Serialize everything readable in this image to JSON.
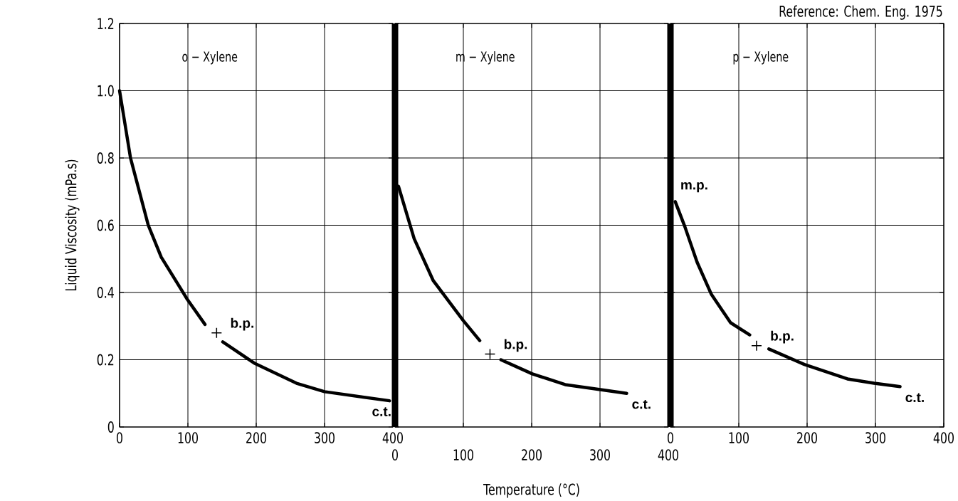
{
  "chart_data": [
    {
      "type": "line",
      "title": "o − Xylene",
      "ylabel": "Liquid Viscosity (mPa.s)",
      "xlim": [
        0,
        400
      ],
      "xticks": [
        0,
        100,
        200,
        300,
        400
      ],
      "ylim": [
        0,
        1.2
      ],
      "yticks": [
        0,
        0.2,
        0.4,
        0.6,
        0.8,
        {
          "value": 1,
          "label": "1.0"
        },
        1.2
      ],
      "grid": true,
      "series": [
        {
          "color": "#000000",
          "x": [
            0,
            16,
            42,
            61,
            99,
            125,
            142,
            151,
            197,
            259,
            300,
            395
          ],
          "values": [
            1.0,
            0.8,
            0.6,
            0.505,
            0.38,
            0.305,
            null,
            0.253,
            0.19,
            0.13,
            0.105,
            0.078
          ]
        },
        {
          "type": "scatter",
          "marker": "cross",
          "color": "#000000",
          "x": [
            142
          ],
          "values": [
            0.28
          ]
        }
      ],
      "annotations": [
        {
          "text": "b.p.",
          "x": 142,
          "y": 0.28
        },
        {
          "text": "c.t.",
          "x": 395,
          "y": 0.078
        }
      ]
    },
    {
      "type": "line",
      "title": "m − Xylene",
      "xlabel": "Temperature (°C)",
      "xlim": [
        0,
        400
      ],
      "xticks": [
        0,
        100,
        200,
        300,
        400
      ],
      "ylim": [
        0,
        1.2
      ],
      "yticks": [
        0,
        0.2,
        0.4,
        0.6,
        0.8,
        1,
        1.2
      ],
      "grid": true,
      "tick_labels": "x",
      "series": [
        {
          "color": "#000000",
          "x": [
            5,
            28,
            56,
            100,
            124,
            139,
            155,
            201,
            249,
            297,
            339
          ],
          "values": [
            0.716,
            0.56,
            0.435,
            0.316,
            0.257,
            null,
            0.2,
            0.158,
            0.126,
            0.112,
            0.1
          ]
        },
        {
          "type": "scatter",
          "marker": "cross",
          "color": "#000000",
          "x": [
            139
          ],
          "values": [
            0.217
          ]
        }
      ],
      "annotations": [
        {
          "text": "b.p.",
          "x": 139,
          "y": 0.217
        },
        {
          "text": "c.t.",
          "x": 339,
          "y": 0.1
        }
      ]
    },
    {
      "type": "line",
      "title": "p − Xylene",
      "xlim": [
        0,
        400
      ],
      "xticks": [
        0,
        100,
        200,
        300,
        400
      ],
      "ylim": [
        0,
        1.2
      ],
      "yticks": [
        0,
        0.2,
        0.4,
        0.6,
        0.8,
        1,
        1.2
      ],
      "grid": true,
      "tick_labels": "x",
      "series": [
        {
          "color": "#000000",
          "x": [
            7,
            21,
            39,
            60,
            88,
            116,
            126,
            144,
            196,
            259,
            298,
            336
          ],
          "values": [
            0.67,
            0.596,
            0.49,
            0.394,
            0.31,
            0.274,
            null,
            0.232,
            0.186,
            0.143,
            0.13,
            0.12
          ]
        },
        {
          "type": "scatter",
          "marker": "cross",
          "color": "#000000",
          "x": [
            126
          ],
          "values": [
            0.242
          ]
        }
      ],
      "annotations": [
        {
          "text": "m.p.",
          "x": 7,
          "y": 0.67
        },
        {
          "text": "b.p.",
          "x": 126,
          "y": 0.242
        },
        {
          "text": "c.t.",
          "x": 336,
          "y": 0.12
        },
        "Reference: Chem. Eng. 1975"
      ]
    }
  ]
}
